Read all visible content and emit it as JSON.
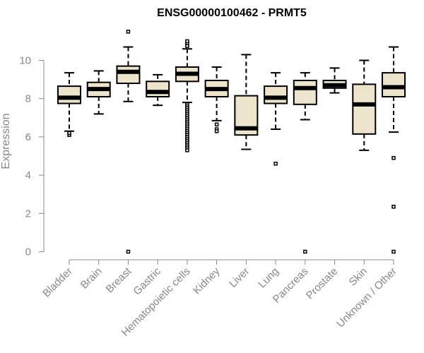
{
  "chart_data": {
    "type": "boxplot",
    "title": "ENSG00000100462 - PRMT5",
    "xlabel": "",
    "ylabel": "Expression",
    "ylim": [
      0,
      11.5
    ],
    "yticks": [
      0,
      2,
      4,
      6,
      8,
      10
    ],
    "grid": false,
    "box_fill": "#ede4cc",
    "categories": [
      "Bladder",
      "Brain",
      "Breast",
      "Gastric",
      "Hematopoietic cells",
      "Kidney",
      "Liver",
      "Lung",
      "Pancreas",
      "Prostate",
      "Skin",
      "Unknown / Other"
    ],
    "boxes": [
      {
        "category": "Bladder",
        "whisker_low": 6.3,
        "q1": 7.75,
        "median": 8.05,
        "q3": 8.65,
        "whisker_high": 9.35,
        "outliers": [
          6.1,
          6.2
        ]
      },
      {
        "category": "Brain",
        "whisker_low": 7.2,
        "q1": 8.1,
        "median": 8.5,
        "q3": 8.85,
        "whisker_high": 9.45,
        "outliers": []
      },
      {
        "category": "Breast",
        "whisker_low": 7.85,
        "q1": 8.8,
        "median": 9.4,
        "q3": 9.7,
        "whisker_high": 10.7,
        "outliers": [
          11.5,
          0.0
        ]
      },
      {
        "category": "Gastric",
        "whisker_low": 7.65,
        "q1": 8.1,
        "median": 8.35,
        "q3": 8.9,
        "whisker_high": 9.25,
        "outliers": []
      },
      {
        "category": "Hematopoietic cells",
        "whisker_low": 7.8,
        "q1": 8.9,
        "median": 9.3,
        "q3": 9.65,
        "whisker_high": 10.6,
        "outliers": [
          10.75,
          10.9,
          11.0,
          7.7,
          7.6,
          7.5,
          7.4,
          7.3,
          7.2,
          7.1,
          7.0,
          6.9,
          6.8,
          6.7,
          6.6,
          6.5,
          6.4,
          6.3,
          6.2,
          6.1,
          6.0,
          5.9,
          5.8,
          5.7,
          5.6,
          5.5,
          5.4,
          5.3
        ]
      },
      {
        "category": "Kidney",
        "whisker_low": 6.85,
        "q1": 8.1,
        "median": 8.5,
        "q3": 8.95,
        "whisker_high": 9.65,
        "outliers": [
          6.65,
          6.4,
          6.3
        ]
      },
      {
        "category": "Liver",
        "whisker_low": 5.35,
        "q1": 6.1,
        "median": 6.45,
        "q3": 8.15,
        "whisker_high": 10.3,
        "outliers": []
      },
      {
        "category": "Lung",
        "whisker_low": 6.4,
        "q1": 7.75,
        "median": 8.05,
        "q3": 8.65,
        "whisker_high": 9.35,
        "outliers": [
          4.6
        ]
      },
      {
        "category": "Pancreas",
        "whisker_low": 6.9,
        "q1": 7.7,
        "median": 8.55,
        "q3": 8.95,
        "whisker_high": 9.35,
        "outliers": [
          0.0
        ]
      },
      {
        "category": "Prostate",
        "whisker_low": 8.3,
        "q1": 8.55,
        "median": 8.7,
        "q3": 8.95,
        "whisker_high": 9.6,
        "outliers": []
      },
      {
        "category": "Skin",
        "whisker_low": 5.3,
        "q1": 6.15,
        "median": 7.7,
        "q3": 8.75,
        "whisker_high": 10.0,
        "outliers": []
      },
      {
        "category": "Unknown / Other",
        "whisker_low": 6.25,
        "q1": 8.1,
        "median": 8.6,
        "q3": 9.35,
        "whisker_high": 10.7,
        "outliers": [
          4.9,
          2.35,
          0.0
        ]
      }
    ]
  }
}
